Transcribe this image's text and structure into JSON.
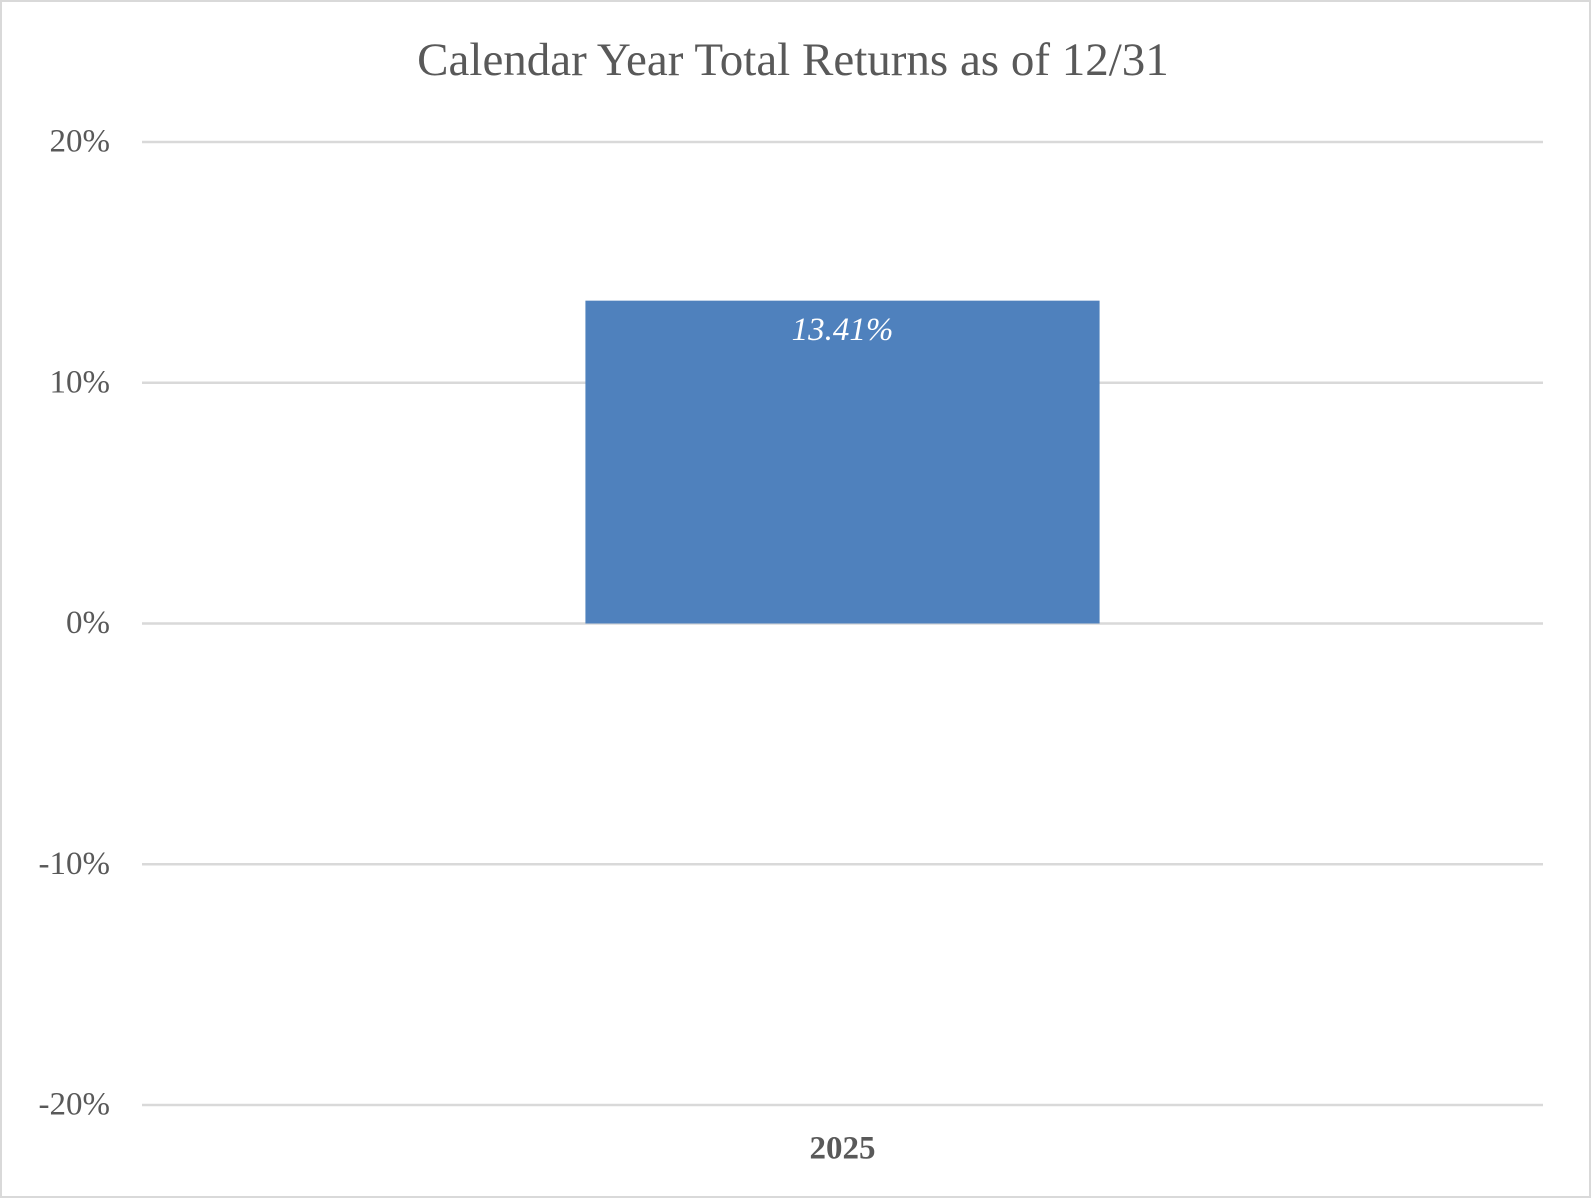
{
  "chart_data": {
    "type": "bar",
    "title": "Calendar Year Total Returns as of 12/31",
    "categories": [
      "2025"
    ],
    "values": [
      13.41
    ],
    "value_labels": [
      "13.41%"
    ],
    "color": "#4f81bd",
    "ylim": [
      -20,
      20
    ],
    "yticks": [
      {
        "value": -20,
        "label": "-20%"
      },
      {
        "value": -10,
        "label": "-10%"
      },
      {
        "value": 0,
        "label": "0%"
      },
      {
        "value": 10,
        "label": "10%"
      },
      {
        "value": 20,
        "label": "20%"
      }
    ],
    "grid": true
  }
}
